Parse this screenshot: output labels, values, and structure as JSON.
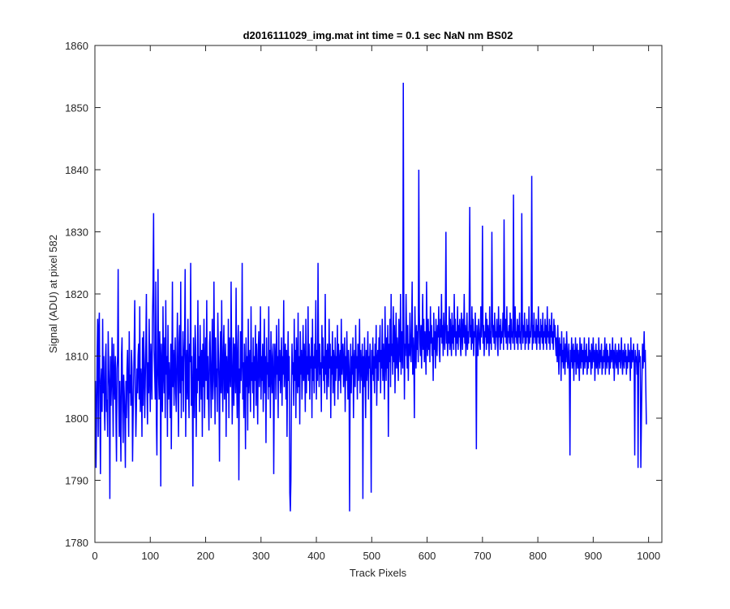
{
  "chart_data": {
    "type": "line",
    "title": "d2016111029_img.mat int time = 0.1 sec  NaN nm BS02",
    "xlabel": "Track Pixels",
    "ylabel": "Signal (ADU) at pixel 582",
    "xlim": [
      0,
      1024
    ],
    "ylim": [
      1780,
      1860
    ],
    "xticks": [
      0,
      100,
      200,
      300,
      400,
      500,
      600,
      700,
      800,
      900,
      1000
    ],
    "yticks": [
      1780,
      1790,
      1800,
      1810,
      1820,
      1830,
      1840,
      1850,
      1860
    ],
    "grid": false,
    "legend": "none",
    "series": [
      {
        "color": "#0000ff",
        "x_start": 1,
        "x_step": 1,
        "values": [
          1806,
          1792,
          1800,
          1810,
          1816,
          1797,
          1814,
          1817,
          1802,
          1791,
          1806,
          1808,
          1801,
          1816,
          1804,
          1810,
          1802,
          1798,
          1809,
          1812,
          1801,
          1803,
          1797,
          1814,
          1808,
          1805,
          1787,
          1810,
          1802,
          1806,
          1813,
          1805,
          1797,
          1812,
          1806,
          1803,
          1810,
          1800,
          1793,
          1808,
          1810,
          1824,
          1803,
          1797,
          1806,
          1800,
          1793,
          1810,
          1813,
          1803,
          1796,
          1807,
          1804,
          1800,
          1792,
          1806,
          1800,
          1808,
          1811,
          1803,
          1797,
          1814,
          1804,
          1807,
          1802,
          1811,
          1808,
          1793,
          1800,
          1806,
          1812,
          1819,
          1805,
          1797,
          1802,
          1808,
          1804,
          1810,
          1812,
          1803,
          1818,
          1801,
          1808,
          1806,
          1797,
          1813,
          1802,
          1814,
          1809,
          1800,
          1806,
          1812,
          1820,
          1805,
          1799,
          1809,
          1804,
          1816,
          1807,
          1801,
          1812,
          1808,
          1803,
          1816,
          1821,
          1833,
          1811,
          1807,
          1803,
          1822,
          1800,
          1794,
          1810,
          1824,
          1807,
          1803,
          1814,
          1809,
          1789,
          1812,
          1806,
          1801,
          1818,
          1808,
          1804,
          1813,
          1800,
          1819,
          1807,
          1810,
          1797,
          1815,
          1803,
          1809,
          1806,
          1800,
          1812,
          1795,
          1807,
          1822,
          1805,
          1811,
          1802,
          1809,
          1813,
          1804,
          1801,
          1810,
          1817,
          1806,
          1797,
          1812,
          1815,
          1804,
          1822,
          1800,
          1810,
          1806,
          1814,
          1801,
          1809,
          1813,
          1824,
          1797,
          1808,
          1811,
          1803,
          1816,
          1806,
          1800,
          1812,
          1809,
          1825,
          1802,
          1810,
          1804,
          1789,
          1813,
          1807,
          1800,
          1815,
          1811,
          1797,
          1808,
          1804,
          1819,
          1806,
          1810,
          1801,
          1815,
          1808,
          1803,
          1811,
          1797,
          1812,
          1805,
          1816,
          1800,
          1808,
          1813,
          1806,
          1819,
          1803,
          1810,
          1804,
          1798,
          1812,
          1814,
          1807,
          1800,
          1809,
          1816,
          1803,
          1806,
          1822,
          1810,
          1799,
          1813,
          1805,
          1808,
          1801,
          1817,
          1811,
          1806,
          1793,
          1809,
          1814,
          1804,
          1819,
          1807,
          1801,
          1811,
          1815,
          1803,
          1808,
          1812,
          1797,
          1810,
          1806,
          1804,
          1816,
          1800,
          1813,
          1808,
          1805,
          1822,
          1810,
          1799,
          1806,
          1813,
          1802,
          1812,
          1809,
          1804,
          1821,
          1807,
          1800,
          1811,
          1815,
          1790,
          1808,
          1804,
          1814,
          1806,
          1810,
          1825,
          1803,
          1809,
          1800,
          1812,
          1807,
          1795,
          1813,
          1805,
          1810,
          1798,
          1816,
          1804,
          1808,
          1811,
          1801,
          1818,
          1806,
          1809,
          1804,
          1813,
          1800,
          1810,
          1806,
          1815,
          1802,
          1812,
          1807,
          1799,
          1811,
          1814,
          1805,
          1808,
          1818,
          1803,
          1810,
          1806,
          1812,
          1801,
          1808,
          1816,
          1804,
          1810,
          1796,
          1813,
          1807,
          1809,
          1803,
          1818,
          1805,
          1811,
          1800,
          1814,
          1808,
          1804,
          1810,
          1812,
          1791,
          1806,
          1812,
          1809,
          1803,
          1815,
          1807,
          1810,
          1800,
          1816,
          1806,
          1811,
          1804,
          1808,
          1813,
          1802,
          1810,
          1807,
          1819,
          1805,
          1809,
          1812,
          1803,
          1811,
          1797,
          1808,
          1814,
          1806,
          1810,
          1788,
          1785,
          1790,
          1804,
          1812,
          1807,
          1809,
          1802,
          1816,
          1806,
          1811,
          1800,
          1813,
          1808,
          1804,
          1817,
          1805,
          1810,
          1799,
          1814,
          1807,
          1811,
          1803,
          1808,
          1815,
          1806,
          1812,
          1809,
          1801,
          1816,
          1804,
          1810,
          1807,
          1818,
          1806,
          1812,
          1803,
          1810,
          1808,
          1813,
          1800,
          1816,
          1806,
          1810,
          1804,
          1812,
          1808,
          1819,
          1803,
          1811,
          1806,
          1825,
          1810,
          1805,
          1812,
          1807,
          1809,
          1801,
          1815,
          1808,
          1813,
          1806,
          1810,
          1804,
          1820,
          1807,
          1811,
          1803,
          1812,
          1809,
          1805,
          1816,
          1808,
          1812,
          1800,
          1810,
          1807,
          1814,
          1804,
          1811,
          1809,
          1802,
          1813,
          1806,
          1810,
          1808,
          1815,
          1803,
          1812,
          1806,
          1809,
          1811,
          1804,
          1816,
          1807,
          1810,
          1812,
          1805,
          1808,
          1813,
          1801,
          1810,
          1806,
          1814,
          1809,
          1803,
          1811,
          1808,
          1785,
          1806,
          1812,
          1804,
          1810,
          1807,
          1813,
          1800,
          1809,
          1811,
          1805,
          1815,
          1808,
          1810,
          1803,
          1812,
          1806,
          1809,
          1816,
          1804,
          1811,
          1808,
          1806,
          1812,
          1787,
          1810,
          1805,
          1813,
          1808,
          1800,
          1811,
          1806,
          1809,
          1814,
          1803,
          1810,
          1808,
          1812,
          1805,
          1788,
          1811,
          1807,
          1813,
          1806,
          1810,
          1804,
          1812,
          1808,
          1815,
          1802,
          1809,
          1811,
          1806,
          1813,
          1809,
          1815,
          1804,
          1811,
          1808,
          1816,
          1806,
          1812,
          1809,
          1803,
          1818,
          1810,
          1806,
          1813,
          1808,
          1815,
          1797,
          1812,
          1809,
          1816,
          1805,
          1820,
          1810,
          1812,
          1807,
          1818,
          1809,
          1815,
          1804,
          1811,
          1817,
          1808,
          1813,
          1810,
          1806,
          1816,
          1812,
          1809,
          1820,
          1807,
          1814,
          1811,
          1808,
          1854,
          1816,
          1803,
          1812,
          1810,
          1820,
          1813,
          1808,
          1815,
          1806,
          1812,
          1810,
          1817,
          1811,
          1809,
          1814,
          1822,
          1807,
          1813,
          1810,
          1800,
          1818,
          1812,
          1808,
          1815,
          1811,
          1814,
          1809,
          1840,
          1817,
          1812,
          1810,
          1815,
          1808,
          1813,
          1820,
          1811,
          1816,
          1809,
          1814,
          1812,
          1807,
          1822,
          1813,
          1810,
          1816,
          1811,
          1814,
          1809,
          1818,
          1812,
          1815,
          1810,
          1813,
          1806,
          1817,
          1811,
          1814,
          1808,
          1816,
          1812,
          1810,
          1815,
          1813,
          1818,
          1811,
          1809,
          1816,
          1813,
          1820,
          1812,
          1815,
          1810,
          1817,
          1813,
          1811,
          1816,
          1830,
          1812,
          1815,
          1810,
          1814,
          1812,
          1818,
          1811,
          1816,
          1813,
          1810,
          1817,
          1812,
          1815,
          1811,
          1820,
          1813,
          1816,
          1810,
          1814,
          1812,
          1818,
          1811,
          1815,
          1813,
          1816,
          1812,
          1810,
          1817,
          1814,
          1811,
          1816,
          1813,
          1820,
          1812,
          1815,
          1810,
          1813,
          1817,
          1811,
          1814,
          1812,
          1816,
          1834,
          1813,
          1815,
          1811,
          1818,
          1812,
          1816,
          1810,
          1814,
          1813,
          1817,
          1811,
          1795,
          1815,
          1812,
          1810,
          1816,
          1814,
          1812,
          1811,
          1818,
          1813,
          1816,
          1831,
          1812,
          1815,
          1810,
          1814,
          1813,
          1817,
          1811,
          1816,
          1812,
          1815,
          1813,
          1810,
          1818,
          1812,
          1814,
          1811,
          1830,
          1816,
          1813,
          1815,
          1812,
          1817,
          1811,
          1814,
          1813,
          1816,
          1812,
          1810,
          1818,
          1813,
          1815,
          1811,
          1816,
          1812,
          1814,
          1813,
          1817,
          1811,
          1832,
          1815,
          1813,
          1816,
          1812,
          1818,
          1811,
          1814,
          1813,
          1815,
          1812,
          1817,
          1811,
          1816,
          1813,
          1814,
          1812,
          1836,
          1815,
          1811,
          1818,
          1813,
          1814,
          1812,
          1816,
          1811,
          1815,
          1813,
          1817,
          1812,
          1814,
          1811,
          1833,
          1816,
          1812,
          1815,
          1813,
          1817,
          1811,
          1814,
          1812,
          1816,
          1813,
          1815,
          1811,
          1818,
          1812,
          1814,
          1813,
          1816,
          1839,
          1811,
          1815,
          1812,
          1817,
          1813,
          1814,
          1812,
          1816,
          1811,
          1815,
          1813,
          1818,
          1812,
          1814,
          1811,
          1816,
          1813,
          1815,
          1812,
          1817,
          1811,
          1814,
          1813,
          1816,
          1812,
          1815,
          1811,
          1818,
          1813,
          1814,
          1812,
          1816,
          1811,
          1815,
          1813,
          1817,
          1812,
          1814,
          1811,
          1816,
          1813,
          1815,
          1812,
          1810,
          1813,
          1809,
          1815,
          1811,
          1807,
          1813,
          1810,
          1812,
          1806,
          1814,
          1809,
          1811,
          1808,
          1813,
          1810,
          1807,
          1812,
          1809,
          1814,
          1811,
          1808,
          1810,
          1812,
          1807,
          1794,
          1811,
          1809,
          1813,
          1808,
          1810,
          1812,
          1806,
          1811,
          1809,
          1813,
          1807,
          1810,
          1812,
          1808,
          1811,
          1809,
          1806,
          1813,
          1810,
          1808,
          1812,
          1809,
          1811,
          1807,
          1810,
          1813,
          1808,
          1811,
          1809,
          1812,
          1807,
          1810,
          1808,
          1813,
          1809,
          1811,
          1810,
          1807,
          1812,
          1808,
          1810,
          1813,
          1809,
          1811,
          1806,
          1810,
          1812,
          1808,
          1811,
          1809,
          1807,
          1813,
          1810,
          1808,
          1811,
          1809,
          1812,
          1807,
          1810,
          1808,
          1811,
          1809,
          1813,
          1807,
          1810,
          1812,
          1808,
          1811,
          1809,
          1810,
          1807,
          1812,
          1808,
          1811,
          1809,
          1810,
          1813,
          1808,
          1811,
          1806,
          1810,
          1812,
          1809,
          1808,
          1811,
          1810,
          1807,
          1812,
          1809,
          1811,
          1808,
          1810,
          1813,
          1809,
          1807,
          1811,
          1810,
          1808,
          1812,
          1809,
          1811,
          1807,
          1810,
          1808,
          1812,
          1809,
          1811,
          1810,
          1806,
          1813,
          1808,
          1811,
          1809,
          1810,
          1812,
          1808,
          1794,
          1811,
          1809,
          1810,
          1807,
          1812,
          1792,
          1808,
          1811,
          1809,
          1810,
          1792,
          1799,
          1806,
          1812,
          1808,
          1810,
          1814,
          1809,
          1811,
          1805,
          1799
        ]
      }
    ]
  }
}
